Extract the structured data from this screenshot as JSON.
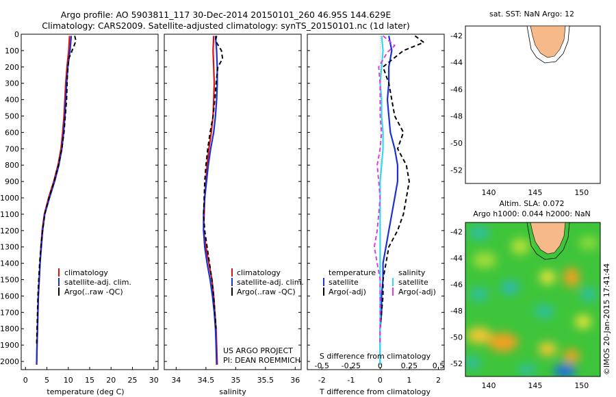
{
  "title": {
    "line1": "Argo profile: AO 5903811_117 30-Dec-2014 20150101_260 46.95S 144.629E",
    "line2": "Climatology: CARS2009. Satellite-adjusted climatology: synTS_20150101.nc (1d later)"
  },
  "credit": {
    "project": "US ARGO PROJECT",
    "pi": "PI: DEAN ROEMMICH",
    "watermark": "©IMOS 20-Jan-2015 17:41:44"
  },
  "colors": {
    "climatology": "#e01010",
    "satellite": "#1a2fd6",
    "argo": "#000000",
    "sal_satellite": "#33d8e8",
    "sal_argo": "#e03ce0",
    "land": "#f5b98a"
  },
  "chart_data": [
    {
      "type": "line",
      "name": "temperature-panel",
      "xlabel": "temperature (deg C)",
      "xlim": [
        -1,
        31
      ],
      "xticks": [
        0,
        5,
        10,
        15,
        20,
        25,
        30
      ],
      "ylim": [
        2050,
        0
      ],
      "yticks": [
        0,
        100,
        200,
        300,
        400,
        500,
        600,
        700,
        800,
        900,
        1000,
        1100,
        1200,
        1300,
        1400,
        1500,
        1600,
        1700,
        1800,
        1900,
        2000
      ],
      "legend": [
        "climatology",
        "satellite-adj. clim.",
        "Argo(..raw -QC)"
      ],
      "series": [
        {
          "name": "climatology",
          "style": "solid",
          "color": "#e01010",
          "x": [
            10.3,
            10.1,
            9.7,
            9.4,
            9.2,
            9.0,
            8.7,
            8.3,
            7.6,
            6.6,
            5.4,
            4.4,
            3.9,
            3.6,
            3.4,
            3.2,
            3.0,
            2.9,
            2.8,
            2.7,
            2.6
          ],
          "y": [
            10,
            100,
            200,
            300,
            400,
            500,
            600,
            700,
            800,
            900,
            1000,
            1100,
            1200,
            1300,
            1400,
            1500,
            1600,
            1700,
            1800,
            1900,
            2020
          ]
        },
        {
          "name": "satellite-adj. clim.",
          "style": "solid",
          "color": "#1a2fd6",
          "x": [
            10.7,
            10.4,
            9.9,
            9.6,
            9.4,
            9.2,
            8.9,
            8.5,
            7.8,
            6.8,
            5.6,
            4.5,
            4.0,
            3.7,
            3.4,
            3.2,
            3.0,
            2.9,
            2.8,
            2.7,
            2.6
          ],
          "y": [
            10,
            100,
            200,
            300,
            400,
            500,
            600,
            700,
            800,
            900,
            1000,
            1100,
            1200,
            1300,
            1400,
            1500,
            1600,
            1700,
            1800,
            1900,
            2020
          ]
        },
        {
          "name": "Argo(..raw -QC)",
          "style": "dash",
          "color": "#000000",
          "x": [
            11.5,
            11.8,
            11.2,
            10.1,
            9.8,
            9.6,
            9.3,
            9.0,
            8.5,
            7.7,
            6.7,
            5.5,
            4.5,
            4.0,
            3.6,
            3.3,
            3.1,
            2.9,
            2.8,
            2.7,
            2.6
          ],
          "y": [
            10,
            40,
            80,
            150,
            250,
            400,
            500,
            600,
            700,
            800,
            900,
            1000,
            1100,
            1200,
            1300,
            1400,
            1500,
            1600,
            1700,
            1800,
            1900
          ]
        }
      ]
    },
    {
      "type": "line",
      "name": "salinity-panel",
      "xlabel": "salinity",
      "xlim": [
        33.8,
        36.1
      ],
      "xticks": [
        34,
        34.5,
        35,
        35.5,
        36
      ],
      "ylim": [
        2050,
        0
      ],
      "legend": [
        "climatology",
        "satellite-adj. clim.",
        "Argo(..raw -QC)"
      ],
      "series": [
        {
          "name": "climatology",
          "style": "solid",
          "color": "#e01010",
          "x": [
            34.63,
            34.62,
            34.63,
            34.64,
            34.63,
            34.62,
            34.59,
            34.55,
            34.52,
            34.5,
            34.48,
            34.47,
            34.46,
            34.5,
            34.55,
            34.6,
            34.63,
            34.65,
            34.67,
            34.68,
            34.69
          ],
          "y": [
            10,
            100,
            200,
            300,
            400,
            500,
            600,
            700,
            800,
            900,
            1000,
            1100,
            1200,
            1300,
            1400,
            1500,
            1600,
            1700,
            1800,
            1900,
            2020
          ]
        },
        {
          "name": "satellite-adj. clim.",
          "style": "solid",
          "color": "#1a2fd6",
          "x": [
            34.66,
            34.68,
            34.69,
            34.69,
            34.68,
            34.66,
            34.63,
            34.58,
            34.54,
            34.51,
            34.48,
            34.46,
            34.46,
            34.48,
            34.52,
            34.57,
            34.61,
            34.64,
            34.66,
            34.67,
            34.68
          ],
          "y": [
            10,
            100,
            200,
            300,
            400,
            500,
            600,
            700,
            800,
            900,
            1000,
            1100,
            1200,
            1300,
            1400,
            1500,
            1600,
            1700,
            1800,
            1900,
            2020
          ]
        },
        {
          "name": "Argo(..raw -QC)",
          "style": "dash",
          "color": "#000000",
          "x": [
            34.68,
            34.66,
            34.76,
            34.78,
            34.7,
            34.67,
            34.65,
            34.62,
            34.57,
            34.53,
            34.5,
            34.48,
            34.47,
            34.46,
            34.48,
            34.52,
            34.56,
            34.6,
            34.63,
            34.65,
            34.67
          ],
          "y": [
            10,
            40,
            100,
            150,
            200,
            300,
            400,
            500,
            600,
            700,
            800,
            900,
            1000,
            1100,
            1200,
            1300,
            1400,
            1500,
            1600,
            1700,
            1800
          ]
        }
      ]
    },
    {
      "type": "line",
      "name": "difference-panel",
      "xlabel": "T difference from climatology",
      "xlabel2": "S difference from climatology",
      "xlim": [
        -2.5,
        2.2
      ],
      "xticks": [
        -2,
        -1,
        0,
        1,
        2
      ],
      "xticks2": [
        "-0.5",
        "-0.25",
        "0",
        "0.25",
        "0.5"
      ],
      "ylim": [
        2050,
        0
      ],
      "legend_left_title": "temperature",
      "legend_right_title": "salinity",
      "legend": [
        "satellite",
        "Argo(-adj)",
        "satellite",
        "Argo(-adj)"
      ],
      "series": [
        {
          "name": "T satellite",
          "style": "solid",
          "color": "#1a2fd6",
          "x": [
            0.3,
            0.4,
            0.3,
            0.3,
            0.25,
            0.3,
            0.35,
            0.5,
            0.6,
            0.6,
            0.5,
            0.4,
            0.3,
            0.2,
            0.1,
            0.1,
            0.05,
            0.05,
            0.0,
            0.0,
            0.0
          ],
          "y": [
            10,
            100,
            200,
            300,
            400,
            500,
            600,
            700,
            800,
            900,
            1000,
            1100,
            1200,
            1300,
            1400,
            1500,
            1600,
            1700,
            1800,
            1900,
            2020
          ]
        },
        {
          "name": "T Argo(-adj)",
          "style": "dash",
          "color": "#000000",
          "x": [
            1.2,
            1.5,
            0.8,
            0.1,
            0.3,
            0.4,
            0.5,
            0.8,
            0.6,
            0.9,
            1.0,
            0.9,
            0.8,
            0.6,
            0.3,
            0.2,
            0.1,
            0.1,
            0.05,
            0.0,
            0.0
          ],
          "y": [
            10,
            50,
            100,
            200,
            300,
            400,
            500,
            600,
            700,
            800,
            900,
            1000,
            1100,
            1200,
            1300,
            1400,
            1500,
            1600,
            1700,
            1800,
            1900
          ]
        },
        {
          "name": "S satellite",
          "style": "solid",
          "color": "#33d8e8",
          "x": [
            0.05,
            0.1,
            0.05,
            0.0,
            0.05,
            0.05,
            0.1,
            0.1,
            0.05,
            0.0,
            0.0,
            0.0,
            0.0,
            0.0,
            0.0,
            0.0,
            0.0,
            0.0,
            0.0,
            0.0,
            0.0
          ],
          "y": [
            10,
            100,
            200,
            300,
            400,
            500,
            600,
            700,
            800,
            900,
            1000,
            1100,
            1200,
            1300,
            1400,
            1500,
            1600,
            1700,
            1800,
            1900,
            2020
          ]
        },
        {
          "name": "S Argo(-adj)",
          "style": "dash",
          "color": "#e03ce0",
          "x": [
            0.1,
            0.5,
            0.25,
            -0.05,
            0.0,
            0.0,
            0.0,
            0.05,
            0.0,
            -0.1,
            -0.05,
            0.0,
            -0.05,
            -0.1,
            -0.2,
            -0.1,
            0.0,
            0.0,
            0.0,
            0.0,
            0.0
          ],
          "y": [
            10,
            70,
            110,
            200,
            300,
            400,
            500,
            600,
            700,
            800,
            900,
            1000,
            1100,
            1200,
            1300,
            1400,
            1500,
            1600,
            1700,
            1800,
            1900
          ]
        }
      ]
    },
    {
      "type": "scatter",
      "name": "sst-map",
      "title": "sat. SST: NaN Argo: 12",
      "xlim": [
        137.5,
        152
      ],
      "ylim": [
        -53,
        -41.3
      ],
      "xticks": [
        140,
        145,
        150
      ],
      "yticks": [
        -42,
        -44,
        -46,
        -48,
        -50,
        -52
      ],
      "point": {
        "lon": 144.629,
        "lat": -46.95,
        "color": "#e6f019"
      }
    },
    {
      "type": "heatmap",
      "name": "sla-map",
      "title_line1": "Altim. SLA: 0.072",
      "title_line2": "Argo h1000: 0.044 h2000: NaN",
      "xlim": [
        137.5,
        152
      ],
      "ylim": [
        -53,
        -41.3
      ],
      "xticks": [
        140,
        145,
        150
      ],
      "yticks": [
        -42,
        -44,
        -46,
        -48,
        -50,
        -52
      ],
      "point": {
        "lon": 144.629,
        "lat": -46.95
      }
    }
  ]
}
